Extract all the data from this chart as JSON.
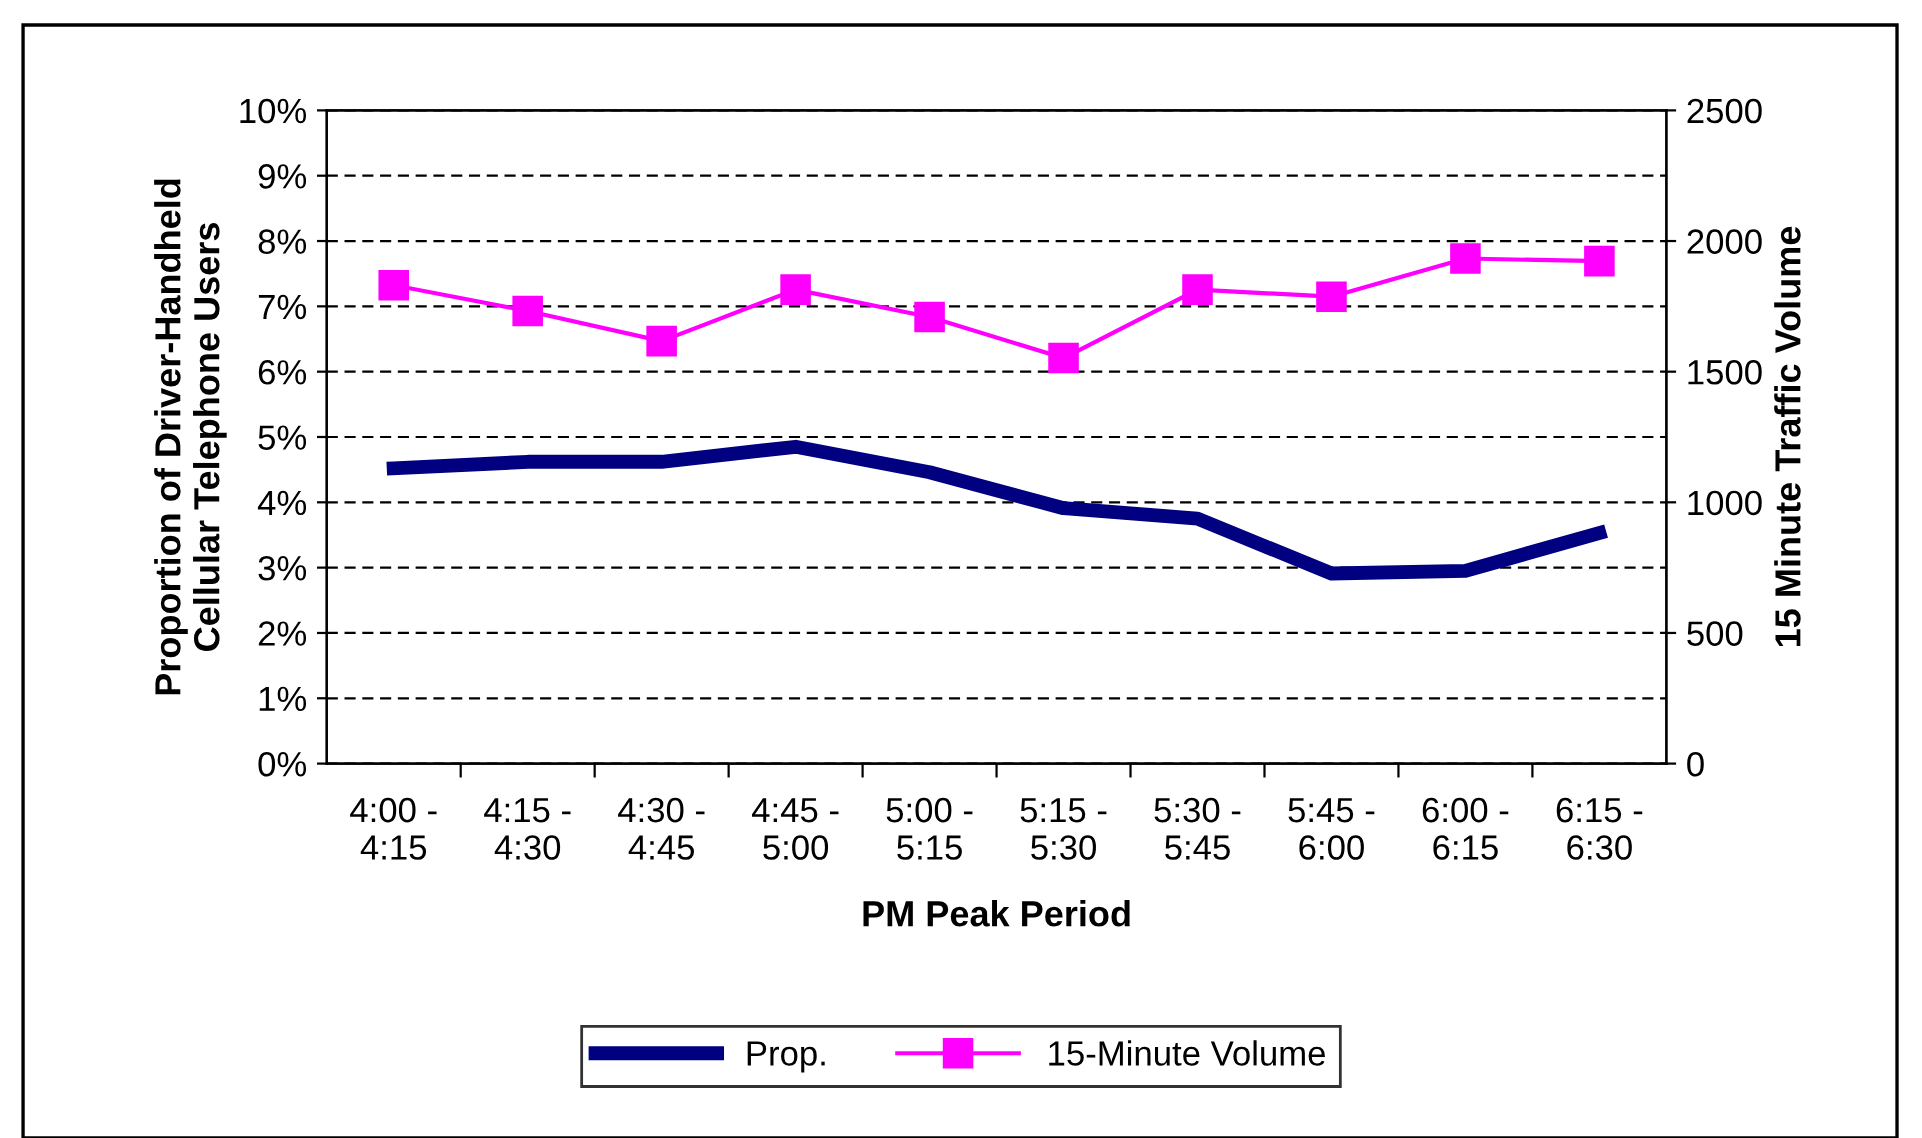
{
  "chart_data": {
    "type": "line",
    "xlabel": "PM Peak Period",
    "ylabel": "Proportion of Driver-Handheld\nCellular Telephone Users",
    "y2label": "15 Minute Traffic Volume",
    "categories": [
      "4:00 -\n4:15",
      "4:15 -\n4:30",
      "4:30 -\n4:45",
      "4:45 -\n5:00",
      "5:00 -\n5:15",
      "5:15 -\n5:30",
      "5:30 -\n5:45",
      "5:45 -\n6:00",
      "6:00 -\n6:15",
      "6:15 -\n6:30"
    ],
    "series": [
      {
        "name": "Prop.",
        "color": "#000080",
        "marker": "none",
        "values": [
          4.52,
          4.62,
          4.62,
          4.85,
          4.46,
          3.91,
          3.75,
          2.91,
          2.95,
          3.53
        ]
      },
      {
        "name": "15-Minute Volume",
        "color": "#ff00ff",
        "marker": "square",
        "axis": "y2",
        "values": [
          1831,
          1732,
          1617,
          1814,
          1709,
          1552,
          1814,
          1787,
          1933,
          1923
        ]
      }
    ],
    "ylim": [
      0,
      10
    ],
    "yticks": [
      {
        "value": 0,
        "label": "0%"
      },
      {
        "value": 1,
        "label": "1%"
      },
      {
        "value": 2,
        "label": "2%"
      },
      {
        "value": 3,
        "label": "3%"
      },
      {
        "value": 4,
        "label": "4%"
      },
      {
        "value": 5,
        "label": "5%"
      },
      {
        "value": 6,
        "label": "6%"
      },
      {
        "value": 7,
        "label": "7%"
      },
      {
        "value": 8,
        "label": "8%"
      },
      {
        "value": 9,
        "label": "9%"
      },
      {
        "value": 10,
        "label": "10%"
      }
    ],
    "y2lim": [
      0,
      2500
    ],
    "y2ticks": [
      0,
      500,
      1000,
      1500,
      2000,
      2500
    ],
    "grid": "y",
    "legend": "bottom",
    "line_style": "solid"
  }
}
